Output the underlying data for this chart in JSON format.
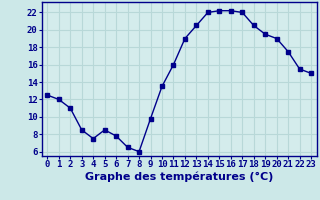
{
  "x": [
    0,
    1,
    2,
    3,
    4,
    5,
    6,
    7,
    8,
    9,
    10,
    11,
    12,
    13,
    14,
    15,
    16,
    17,
    18,
    19,
    20,
    21,
    22,
    23
  ],
  "y": [
    12.5,
    12.0,
    11.0,
    8.5,
    7.5,
    8.5,
    7.8,
    6.5,
    6.0,
    9.8,
    13.5,
    16.0,
    19.0,
    20.5,
    22.0,
    22.2,
    22.2,
    22.0,
    20.5,
    19.5,
    19.0,
    17.5,
    15.5,
    15.0
  ],
  "line_color": "#00008b",
  "marker": "s",
  "marker_size": 2.5,
  "bg_color": "#cce8e8",
  "grid_color": "#b0d0d0",
  "xlabel": "Graphe des températures (°C)",
  "xlabel_fontsize": 8,
  "ylabel_ticks": [
    6,
    8,
    10,
    12,
    14,
    16,
    18,
    20,
    22
  ],
  "xlim": [
    -0.5,
    23.5
  ],
  "ylim": [
    5.5,
    23.2
  ],
  "tick_color": "#00008b",
  "tick_fontsize": 6.5,
  "spine_color": "#00008b",
  "axis_bg": "#d4ecec"
}
